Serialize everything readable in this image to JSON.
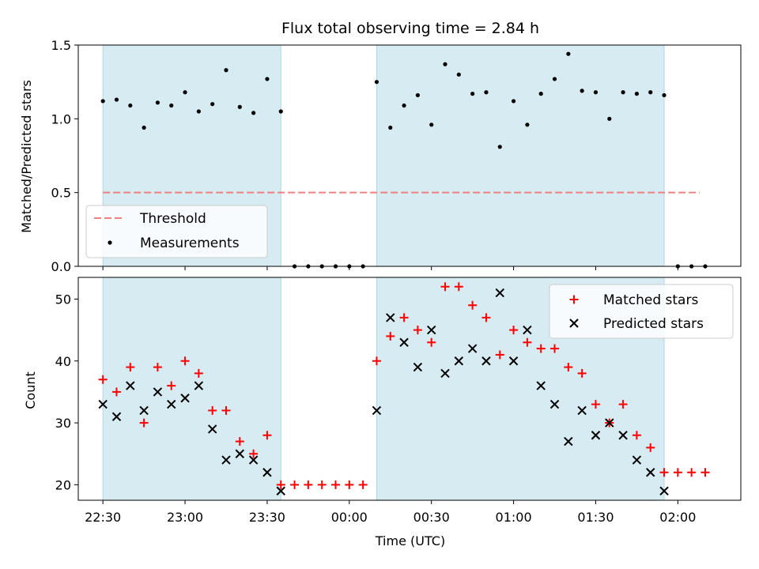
{
  "chart_data": [
    {
      "type": "scatter",
      "title": "Flux total observing time = 2.84 h",
      "ylabel": "Matched/Predicted stars",
      "ylim": [
        0,
        1.5
      ],
      "yticks": [
        0.0,
        0.5,
        1.0,
        1.5
      ],
      "ytick_labels": [
        "0.0",
        "0.5",
        "1.0",
        "1.5"
      ],
      "xticks": [
        "22:30",
        "23:00",
        "23:30",
        "00:00",
        "00:30",
        "01:00",
        "01:30",
        "02:00"
      ],
      "xlim": [
        "22:21",
        "02:23"
      ],
      "observing_spans": [
        [
          "22:30",
          "23:35"
        ],
        [
          "00:10",
          "01:55"
        ]
      ],
      "threshold": {
        "name": "Threshold",
        "value": 0.5,
        "x_range": [
          "22:30",
          "02:08"
        ],
        "color": "#f08080"
      },
      "legend_position": "lower-left",
      "series": [
        {
          "name": "Measurements",
          "color": "#000000",
          "points": [
            [
              "22:30",
              1.12
            ],
            [
              "22:35",
              1.13
            ],
            [
              "22:40",
              1.09
            ],
            [
              "22:45",
              0.94
            ],
            [
              "22:50",
              1.11
            ],
            [
              "22:55",
              1.09
            ],
            [
              "23:00",
              1.18
            ],
            [
              "23:05",
              1.05
            ],
            [
              "23:10",
              1.1
            ],
            [
              "23:15",
              1.33
            ],
            [
              "23:20",
              1.08
            ],
            [
              "23:25",
              1.04
            ],
            [
              "23:30",
              1.27
            ],
            [
              "23:35",
              1.05
            ],
            [
              "23:40",
              0.0
            ],
            [
              "23:45",
              0.0
            ],
            [
              "23:50",
              0.0
            ],
            [
              "23:55",
              0.0
            ],
            [
              "00:00",
              0.0
            ],
            [
              "00:05",
              0.0
            ],
            [
              "00:10",
              1.25
            ],
            [
              "00:15",
              0.94
            ],
            [
              "00:20",
              1.09
            ],
            [
              "00:25",
              1.16
            ],
            [
              "00:30",
              0.96
            ],
            [
              "00:35",
              1.37
            ],
            [
              "00:40",
              1.3
            ],
            [
              "00:45",
              1.17
            ],
            [
              "00:50",
              1.18
            ],
            [
              "00:55",
              0.81
            ],
            [
              "01:00",
              1.12
            ],
            [
              "01:05",
              0.96
            ],
            [
              "01:10",
              1.17
            ],
            [
              "01:15",
              1.27
            ],
            [
              "01:20",
              1.44
            ],
            [
              "01:25",
              1.19
            ],
            [
              "01:30",
              1.18
            ],
            [
              "01:35",
              1.0
            ],
            [
              "01:40",
              1.18
            ],
            [
              "01:45",
              1.17
            ],
            [
              "01:50",
              1.18
            ],
            [
              "01:55",
              1.16
            ],
            [
              "02:00",
              0.0
            ],
            [
              "02:05",
              0.0
            ],
            [
              "02:10",
              0.0
            ]
          ]
        }
      ]
    },
    {
      "type": "scatter",
      "xlabel": "Time (UTC)",
      "ylabel": "Count",
      "ylim": [
        17.5,
        53.5
      ],
      "yticks": [
        20,
        30,
        40,
        50
      ],
      "ytick_labels": [
        "20",
        "30",
        "40",
        "50"
      ],
      "xticks": [
        "22:30",
        "23:00",
        "23:30",
        "00:00",
        "00:30",
        "01:00",
        "01:30",
        "02:00"
      ],
      "xlim": [
        "22:21",
        "02:23"
      ],
      "observing_spans": [
        [
          "22:30",
          "23:35"
        ],
        [
          "00:10",
          "01:55"
        ]
      ],
      "legend_position": "upper-right",
      "series": [
        {
          "name": "Matched stars",
          "marker": "plus",
          "color": "#ff0000",
          "points": [
            [
              "22:30",
              37
            ],
            [
              "22:35",
              35
            ],
            [
              "22:40",
              39
            ],
            [
              "22:45",
              30
            ],
            [
              "22:50",
              39
            ],
            [
              "22:55",
              36
            ],
            [
              "23:00",
              40
            ],
            [
              "23:05",
              38
            ],
            [
              "23:10",
              32
            ],
            [
              "23:15",
              32
            ],
            [
              "23:20",
              27
            ],
            [
              "23:25",
              25
            ],
            [
              "23:30",
              28
            ],
            [
              "23:35",
              20
            ],
            [
              "23:40",
              20
            ],
            [
              "23:45",
              20
            ],
            [
              "23:50",
              20
            ],
            [
              "23:55",
              20
            ],
            [
              "00:00",
              20
            ],
            [
              "00:05",
              20
            ],
            [
              "00:10",
              40
            ],
            [
              "00:15",
              44
            ],
            [
              "00:20",
              47
            ],
            [
              "00:25",
              45
            ],
            [
              "00:30",
              43
            ],
            [
              "00:35",
              52
            ],
            [
              "00:40",
              52
            ],
            [
              "00:45",
              49
            ],
            [
              "00:50",
              47
            ],
            [
              "00:55",
              41
            ],
            [
              "01:00",
              45
            ],
            [
              "01:05",
              43
            ],
            [
              "01:10",
              42
            ],
            [
              "01:15",
              42
            ],
            [
              "01:20",
              39
            ],
            [
              "01:25",
              38
            ],
            [
              "01:30",
              33
            ],
            [
              "01:35",
              30
            ],
            [
              "01:40",
              33
            ],
            [
              "01:45",
              28
            ],
            [
              "01:50",
              26
            ],
            [
              "01:55",
              22
            ],
            [
              "02:00",
              22
            ],
            [
              "02:05",
              22
            ],
            [
              "02:10",
              22
            ]
          ]
        },
        {
          "name": "Predicted stars",
          "marker": "x",
          "color": "#000000",
          "points": [
            [
              "22:30",
              33
            ],
            [
              "22:35",
              31
            ],
            [
              "22:40",
              36
            ],
            [
              "22:45",
              32
            ],
            [
              "22:50",
              35
            ],
            [
              "22:55",
              33
            ],
            [
              "23:00",
              34
            ],
            [
              "23:05",
              36
            ],
            [
              "23:10",
              29
            ],
            [
              "23:15",
              24
            ],
            [
              "23:20",
              25
            ],
            [
              "23:25",
              24
            ],
            [
              "23:30",
              22
            ],
            [
              "23:35",
              19
            ],
            [
              "00:10",
              32
            ],
            [
              "00:15",
              47
            ],
            [
              "00:20",
              43
            ],
            [
              "00:25",
              39
            ],
            [
              "00:30",
              45
            ],
            [
              "00:35",
              38
            ],
            [
              "00:40",
              40
            ],
            [
              "00:45",
              42
            ],
            [
              "00:50",
              40
            ],
            [
              "00:55",
              51
            ],
            [
              "01:00",
              40
            ],
            [
              "01:05",
              45
            ],
            [
              "01:10",
              36
            ],
            [
              "01:15",
              33
            ],
            [
              "01:20",
              27
            ],
            [
              "01:25",
              32
            ],
            [
              "01:30",
              28
            ],
            [
              "01:35",
              30
            ],
            [
              "01:40",
              28
            ],
            [
              "01:45",
              24
            ],
            [
              "01:50",
              22
            ],
            [
              "01:55",
              19
            ]
          ]
        }
      ]
    }
  ],
  "colors": {
    "span_fill": "#add8e6",
    "span_alpha": 0.5
  }
}
